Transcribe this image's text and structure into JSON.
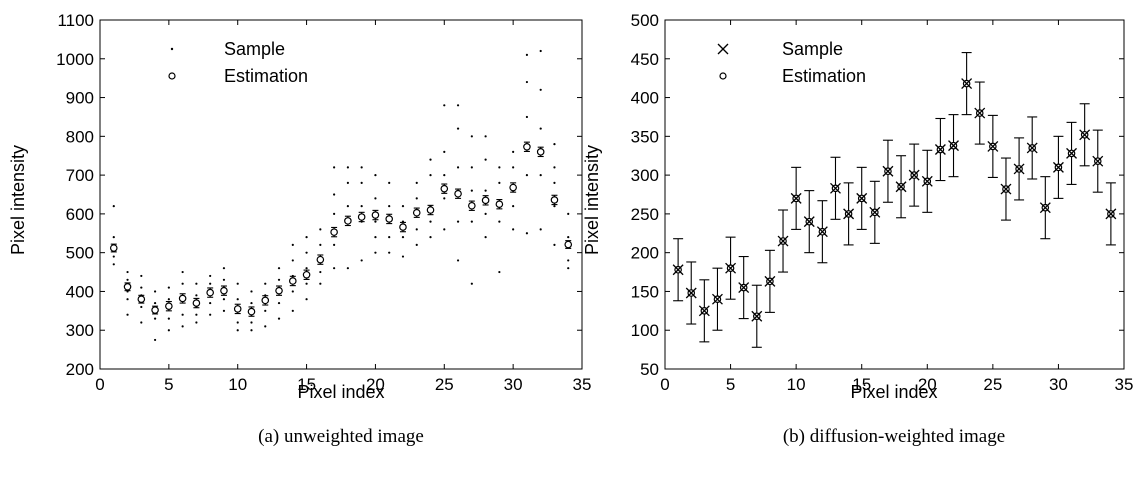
{
  "chart_data": [
    {
      "type": "scatter",
      "caption": "(a) unweighted image",
      "xlabel": "Pixel index",
      "ylabel": "Pixel intensity",
      "xlim": [
        0,
        35
      ],
      "ylim": [
        200,
        1100
      ],
      "xticks": [
        0,
        5,
        10,
        15,
        20,
        25,
        30,
        35
      ],
      "yticks": [
        200,
        300,
        400,
        500,
        600,
        700,
        800,
        900,
        1000,
        1100
      ],
      "legend": {
        "placement": "top-left",
        "entries": [
          "Sample",
          "Estimation"
        ]
      },
      "estimation": {
        "name": "Estimation",
        "marker": "circle",
        "x": [
          1,
          2,
          3,
          4,
          5,
          6,
          7,
          8,
          9,
          10,
          11,
          12,
          13,
          14,
          15,
          16,
          17,
          18,
          19,
          20,
          21,
          22,
          23,
          24,
          25,
          26,
          27,
          28,
          29,
          30,
          31,
          32,
          33,
          34
        ],
        "y": [
          512,
          412,
          380,
          352,
          362,
          382,
          370,
          397,
          402,
          355,
          348,
          377,
          402,
          427,
          443,
          482,
          553,
          582,
          592,
          597,
          587,
          566,
          603,
          610,
          665,
          652,
          621,
          635,
          625,
          668,
          773,
          760,
          636,
          521
        ],
        "err": [
          10,
          10,
          10,
          10,
          12,
          12,
          12,
          12,
          12,
          12,
          12,
          12,
          12,
          12,
          12,
          12,
          12,
          12,
          12,
          12,
          12,
          12,
          12,
          12,
          12,
          12,
          12,
          12,
          12,
          12,
          12,
          12,
          12,
          10
        ]
      },
      "samples": {
        "name": "Sample",
        "marker": "dot",
        "x": [
          1,
          1,
          1,
          1,
          2,
          2,
          2,
          2,
          2,
          3,
          3,
          3,
          3,
          3,
          4,
          4,
          4,
          4,
          4,
          5,
          5,
          5,
          5,
          5,
          6,
          6,
          6,
          6,
          6,
          7,
          7,
          7,
          7,
          7,
          8,
          8,
          8,
          8,
          8,
          9,
          9,
          9,
          9,
          9,
          10,
          10,
          10,
          10,
          10,
          11,
          11,
          11,
          11,
          11,
          12,
          12,
          12,
          12,
          12,
          13,
          13,
          13,
          13,
          13,
          14,
          14,
          14,
          14,
          14,
          15,
          15,
          15,
          15,
          15,
          16,
          16,
          16,
          16,
          16,
          17,
          17,
          17,
          17,
          17,
          18,
          18,
          18,
          18,
          18,
          19,
          19,
          19,
          19,
          19,
          20,
          20,
          20,
          20,
          20,
          21,
          21,
          21,
          21,
          21,
          22,
          22,
          22,
          22,
          22,
          23,
          23,
          23,
          23,
          23,
          24,
          24,
          24,
          24,
          24,
          25,
          25,
          25,
          25,
          25,
          26,
          26,
          26,
          26,
          26,
          27,
          27,
          27,
          27,
          27,
          28,
          28,
          28,
          28,
          28,
          29,
          29,
          29,
          29,
          29,
          30,
          30,
          30,
          30,
          30,
          31,
          31,
          31,
          31,
          31,
          32,
          32,
          32,
          32,
          32,
          33,
          33,
          33,
          33,
          33,
          34,
          34,
          34,
          34
        ],
        "y": [
          620,
          540,
          490,
          470,
          450,
          430,
          400,
          380,
          340,
          440,
          410,
          390,
          360,
          320,
          400,
          370,
          350,
          330,
          275,
          410,
          380,
          360,
          330,
          300,
          450,
          420,
          380,
          340,
          310,
          420,
          390,
          360,
          340,
          320,
          440,
          420,
          400,
          370,
          340,
          460,
          430,
          410,
          380,
          350,
          420,
          380,
          350,
          320,
          300,
          400,
          370,
          340,
          320,
          300,
          420,
          390,
          370,
          350,
          310,
          460,
          430,
          400,
          370,
          330,
          520,
          480,
          440,
          400,
          350,
          540,
          500,
          460,
          420,
          380,
          560,
          520,
          480,
          450,
          420,
          720,
          650,
          600,
          520,
          460,
          720,
          680,
          620,
          580,
          460,
          720,
          680,
          620,
          580,
          480,
          700,
          640,
          580,
          540,
          500,
          680,
          620,
          580,
          540,
          500,
          620,
          580,
          560,
          540,
          490,
          680,
          640,
          600,
          560,
          520,
          740,
          700,
          620,
          580,
          540,
          880,
          760,
          700,
          640,
          560,
          880,
          820,
          720,
          580,
          480,
          800,
          720,
          660,
          580,
          420,
          800,
          740,
          660,
          600,
          540,
          720,
          680,
          620,
          580,
          450,
          760,
          720,
          660,
          620,
          560,
          1010,
          940,
          850,
          700,
          550,
          1020,
          920,
          820,
          700,
          560,
          780,
          720,
          680,
          620,
          520,
          600,
          540,
          480,
          460
        ]
      }
    },
    {
      "type": "scatter",
      "caption": "(b) diffusion-weighted image",
      "xlabel": "Pixel index",
      "ylabel": "Pixel intensity",
      "xlim": [
        0,
        35
      ],
      "ylim": [
        50,
        500
      ],
      "xticks": [
        0,
        5,
        10,
        15,
        20,
        25,
        30,
        35
      ],
      "yticks": [
        50,
        100,
        150,
        200,
        250,
        300,
        350,
        400,
        450,
        500
      ],
      "legend": {
        "placement": "top-left",
        "entries": [
          "Sample",
          "Estimation"
        ]
      },
      "sample": {
        "name": "Sample",
        "marker": "x",
        "x": [
          1,
          2,
          3,
          4,
          5,
          6,
          7,
          8,
          9,
          10,
          11,
          12,
          13,
          14,
          15,
          16,
          17,
          18,
          19,
          20,
          21,
          22,
          23,
          24,
          25,
          26,
          27,
          28,
          29,
          30,
          31,
          32,
          33,
          34
        ],
        "y": [
          178,
          148,
          125,
          140,
          180,
          155,
          118,
          163,
          215,
          270,
          240,
          227,
          283,
          250,
          270,
          252,
          305,
          285,
          300,
          292,
          333,
          338,
          418,
          380,
          337,
          282,
          308,
          335,
          258,
          310,
          328,
          352,
          318,
          250
        ]
      },
      "estimation": {
        "name": "Estimation",
        "marker": "circle",
        "x": [
          1,
          2,
          3,
          4,
          5,
          6,
          7,
          8,
          9,
          10,
          11,
          12,
          13,
          14,
          15,
          16,
          17,
          18,
          19,
          20,
          21,
          22,
          23,
          24,
          25,
          26,
          27,
          28,
          29,
          30,
          31,
          32,
          33,
          34
        ],
        "y": [
          178,
          148,
          125,
          140,
          180,
          155,
          118,
          163,
          215,
          270,
          240,
          227,
          283,
          250,
          270,
          252,
          305,
          285,
          300,
          292,
          333,
          338,
          418,
          380,
          337,
          282,
          308,
          335,
          258,
          310,
          328,
          352,
          318,
          250
        ],
        "err": [
          40,
          40,
          40,
          40,
          40,
          40,
          40,
          40,
          40,
          40,
          40,
          40,
          40,
          40,
          40,
          40,
          40,
          40,
          40,
          40,
          40,
          40,
          40,
          40,
          40,
          40,
          40,
          40,
          40,
          40,
          40,
          40,
          40,
          40
        ]
      }
    }
  ]
}
